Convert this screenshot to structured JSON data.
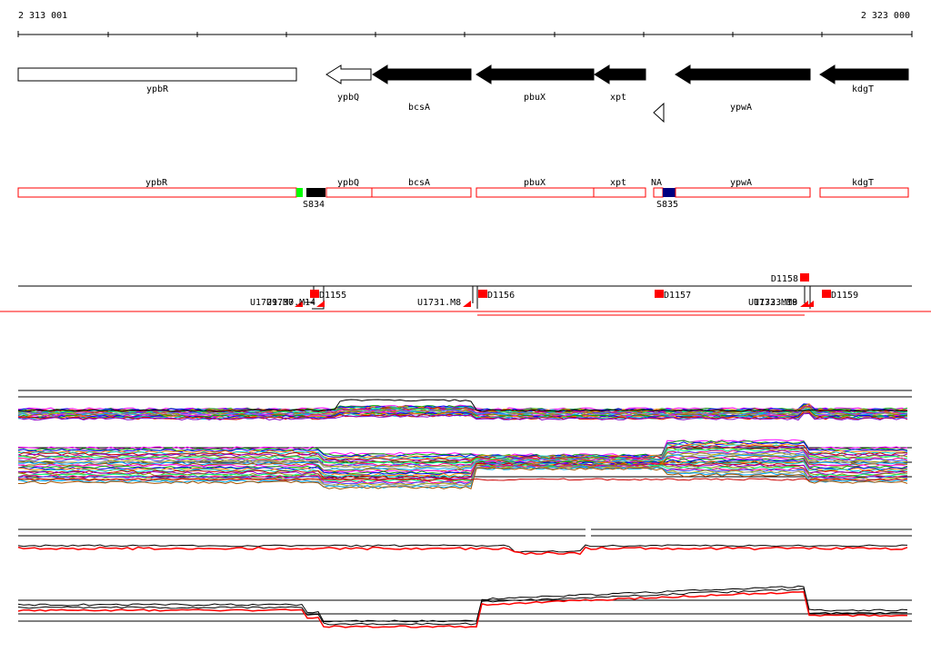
{
  "coordinates": {
    "start": "2 313 001",
    "end": "2 323 000"
  },
  "genes": [
    {
      "name": "ypbR",
      "strand": "+"
    },
    {
      "name": "ypbQ",
      "strand": "-"
    },
    {
      "name": "bcsA",
      "strand": "-"
    },
    {
      "name": "pbuX",
      "strand": "-"
    },
    {
      "name": "xpt",
      "strand": "-"
    },
    {
      "name": "ypwA",
      "strand": "-"
    },
    {
      "name": "kdgT",
      "strand": "-"
    }
  ],
  "annotation_labels": {
    "ypbR": "ypbR",
    "ypbQ": "ypbQ",
    "bcsA": "bcsA",
    "pbuX": "pbuX",
    "xpt": "xpt",
    "na": "NA",
    "ypwA": "ypwA",
    "kdgT": "kdgT"
  },
  "signals": [
    {
      "name": "S834",
      "color": "#000000"
    },
    {
      "name": "S835",
      "color": "#000080"
    }
  ],
  "signal_colors": {
    "sigma_green": "#00ff00"
  },
  "transcript_labels": {
    "down": [
      "D1155",
      "D1156",
      "D1157",
      "D1158",
      "D1159"
    ],
    "up": [
      "U1729.M7",
      "U1730.M14",
      "U1731.M8",
      "U1732.M19",
      "U1733.M8"
    ]
  },
  "colors": {
    "annotation_box": "#ff0000",
    "signal_line": "#ff0000",
    "track_black": "#000000"
  }
}
